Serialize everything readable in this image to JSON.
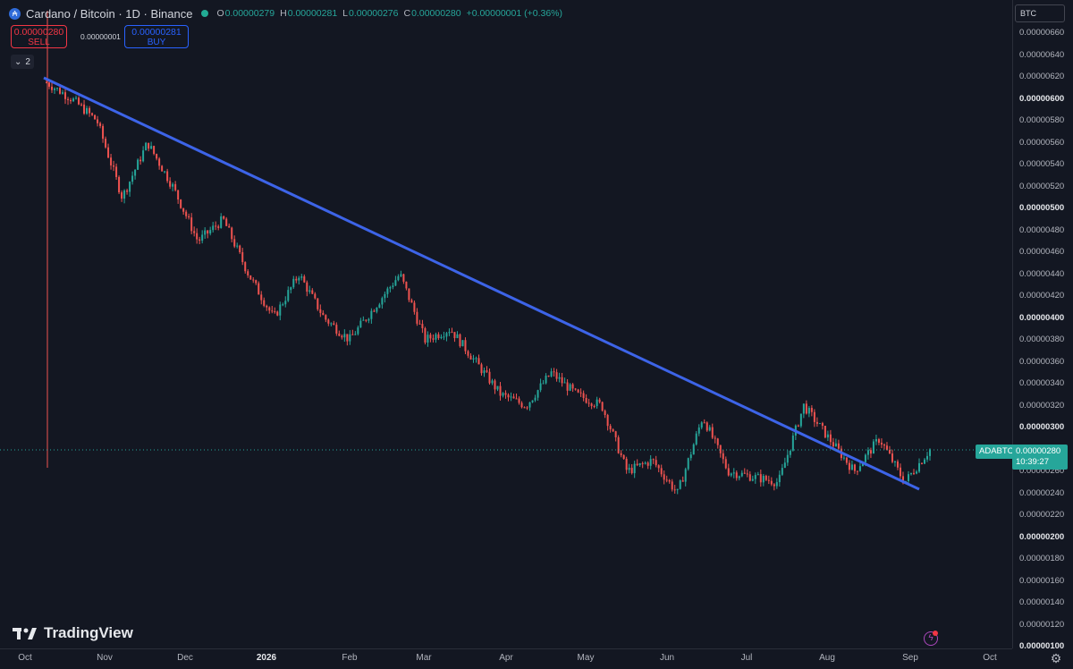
{
  "header": {
    "symbol_title": "Cardano / Bitcoin · 1D · Binance",
    "symbol_icon": "cardano-coin-icon",
    "ohlc": {
      "o_label": "O",
      "o": "0.00000279",
      "h_label": "H",
      "h": "0.00000281",
      "l_label": "L",
      "l": "0.00000276",
      "c_label": "C",
      "c": "0.00000280",
      "change": "+0.00000001 (+0.36%)"
    }
  },
  "trade": {
    "sell_price": "0.00000280",
    "sell_label": "SELL",
    "spread": "0.00000001",
    "buy_price": "0.00000281",
    "buy_label": "BUY"
  },
  "indicators_toggle": {
    "count": "2"
  },
  "price_axis": {
    "currency": "BTC",
    "ticks": [
      "0.00000660",
      "0.00000640",
      "0.00000620",
      "0.00000600",
      "0.00000580",
      "0.00000560",
      "0.00000540",
      "0.00000520",
      "0.00000500",
      "0.00000480",
      "0.00000460",
      "0.00000440",
      "0.00000420",
      "0.00000400",
      "0.00000380",
      "0.00000360",
      "0.00000340",
      "0.00000320",
      "0.00000300",
      "0.00000280",
      "0.00000260",
      "0.00000240",
      "0.00000220",
      "0.00000200",
      "0.00000180",
      "0.00000160",
      "0.00000140",
      "0.00000120",
      "0.00000100"
    ],
    "major_ticks": [
      "0.00000600",
      "0.00000500",
      "0.00000400",
      "0.00000300",
      "0.00000200",
      "0.00000100"
    ]
  },
  "last_price": {
    "symbol": "ADABTC",
    "price": "0.00000280",
    "countdown": "10:39:27"
  },
  "time_axis": {
    "labels": [
      "Oct",
      "Nov",
      "Dec",
      "2026",
      "Feb",
      "Mar",
      "Apr",
      "May",
      "Jun",
      "Jul",
      "Aug",
      "Sep",
      "Oct"
    ],
    "bold_labels": [
      "2026"
    ]
  },
  "colors": {
    "background": "#131722",
    "up": "#26a69a",
    "down": "#ef5350",
    "trendline": "#3d64e8"
  },
  "branding": {
    "logo_text": "TradingView"
  },
  "chart_data": {
    "type": "candlestick",
    "interval": "1D",
    "yrange": [
      1e-06,
      6.7e-06
    ],
    "trendline": {
      "from": [
        "Oct",
        6.2e-06
      ],
      "to": [
        "Sep",
        2.45e-06
      ]
    },
    "close_path": [
      [
        "Oct",
        6.15e-06
      ],
      [
        "Oct",
        6e-06
      ],
      [
        "Nov",
        5.8e-06
      ],
      [
        "Nov",
        5.1e-06
      ],
      [
        "Nov",
        5.6e-06
      ],
      [
        "Nov",
        5.2e-06
      ],
      [
        "Dec",
        4.7e-06
      ],
      [
        "Dec",
        4.9e-06
      ],
      [
        "Dec",
        4.4e-06
      ],
      [
        "2026",
        4e-06
      ],
      [
        "2026",
        4.4e-06
      ],
      [
        "2026",
        4e-06
      ],
      [
        "Feb",
        3.8e-06
      ],
      [
        "Feb",
        4.1e-06
      ],
      [
        "Mar",
        4.4e-06
      ],
      [
        "Mar",
        3.8e-06
      ],
      [
        "Mar",
        3.9e-06
      ],
      [
        "Apr",
        3.6e-06
      ],
      [
        "Apr",
        3.3e-06
      ],
      [
        "May",
        3.2e-06
      ],
      [
        "May",
        3.5e-06
      ],
      [
        "May",
        3.3e-06
      ],
      [
        "Jun",
        3.2e-06
      ],
      [
        "Jun",
        2.6e-06
      ],
      [
        "Jun",
        2.7e-06
      ],
      [
        "Jun",
        2.4e-06
      ],
      [
        "Jul",
        3.1e-06
      ],
      [
        "Jul",
        2.6e-06
      ],
      [
        "Jul",
        2.55e-06
      ],
      [
        "Aug",
        2.5e-06
      ],
      [
        "Aug",
        3.2e-06
      ],
      [
        "Aug",
        2.9e-06
      ],
      [
        "Aug",
        2.6e-06
      ],
      [
        "Sep",
        2.9e-06
      ],
      [
        "Sep",
        2.5e-06
      ],
      [
        "Sep",
        2.8e-06
      ]
    ]
  }
}
